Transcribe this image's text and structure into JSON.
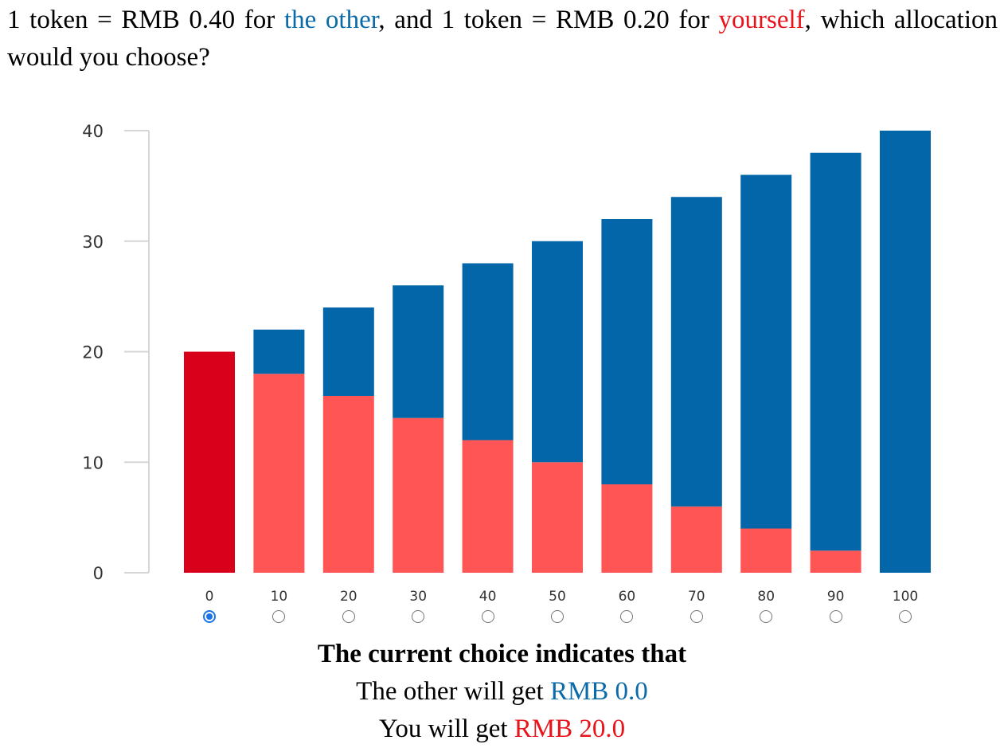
{
  "question": {
    "part1": "1 token = RMB 0.40 for ",
    "other_label": "the other",
    "part2": ", and 1 token = RMB 0.20 for ",
    "self_label": "yourself",
    "part3": ", which allocation would you choose?"
  },
  "colors": {
    "other": "#0266a9",
    "self_selected": "#d9001b",
    "self": "#ff5555",
    "other_text": "#0b6aa8",
    "self_text": "#e8131b"
  },
  "chart_data": {
    "type": "bar",
    "stacked": true,
    "categories": [
      "0",
      "10",
      "20",
      "30",
      "40",
      "50",
      "60",
      "70",
      "80",
      "90",
      "100"
    ],
    "series": [
      {
        "values": [
          20,
          18,
          16,
          14,
          12,
          10,
          8,
          6,
          4,
          2,
          0
        ],
        "color": "#ff5555"
      },
      {
        "values": [
          0,
          4,
          8,
          12,
          16,
          20,
          24,
          28,
          32,
          36,
          40
        ],
        "color": "#0266a9"
      }
    ],
    "selected_index": 0,
    "yticks": [
      "0",
      "10",
      "20",
      "30",
      "40"
    ],
    "ylim": [
      0,
      40
    ],
    "grid": false,
    "legend": "none"
  },
  "selection": {
    "options": [
      "0",
      "10",
      "20",
      "30",
      "40",
      "50",
      "60",
      "70",
      "80",
      "90",
      "100"
    ],
    "selected": "0"
  },
  "summary": {
    "headline": "The current choice indicates that",
    "other_prefix": "The other will get ",
    "other_amount": "RMB 0.0",
    "self_prefix": "You will get ",
    "self_amount": "RMB 20.0"
  }
}
